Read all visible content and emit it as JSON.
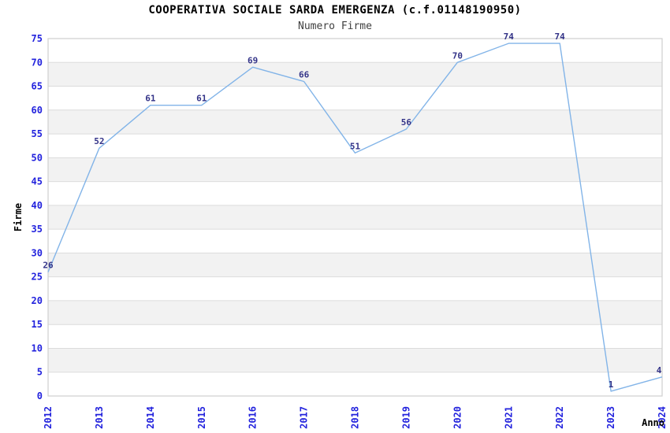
{
  "chart_data": {
    "type": "line",
    "title": "COOPERATIVA SOCIALE SARDA EMERGENZA (c.f.01148190950)",
    "subtitle": "Numero Firme",
    "xlabel": "Anno",
    "ylabel": "Firme",
    "x": [
      "2012",
      "2013",
      "2014",
      "2015",
      "2016",
      "2017",
      "2018",
      "2019",
      "2020",
      "2021",
      "2022",
      "2023",
      "2024"
    ],
    "series": [
      {
        "name": "Numero Firme",
        "values": [
          26,
          52,
          61,
          61,
          69,
          66,
          51,
          56,
          70,
          74,
          74,
          1,
          4
        ]
      }
    ],
    "ylim": [
      0,
      75
    ],
    "ytick_step": 5,
    "legend": "none",
    "grid": "horizontal-bands",
    "data_labels_visible": true,
    "colors": {
      "line": "#82b4e8",
      "tick_label": "#2222dd",
      "data_label": "#333388",
      "band": "#f2f2f2",
      "gridline": "#dcdcdc",
      "border": "#cfcfcf",
      "title": "#000000",
      "subtitle": "#404040",
      "axis_label": "#000000"
    }
  }
}
